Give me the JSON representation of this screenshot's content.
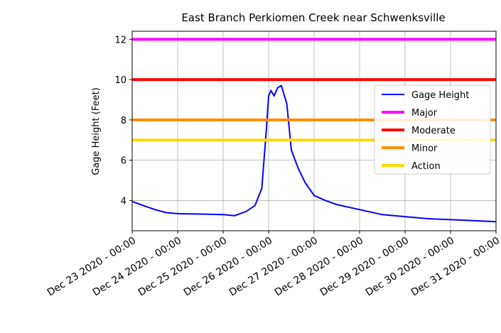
{
  "chart_data": {
    "type": "line",
    "title": "East Branch Perkiomen Creek near Schwenksville",
    "ylabel": "Gage Height (Feet)",
    "x": [
      "2020-12-23 00:00",
      "2020-12-23 06:00",
      "2020-12-23 12:00",
      "2020-12-23 18:00",
      "2020-12-24 00:00",
      "2020-12-24 12:00",
      "2020-12-25 00:00",
      "2020-12-25 06:00",
      "2020-12-25 12:00",
      "2020-12-25 16:48",
      "2020-12-25 20:24",
      "2020-12-25 22:48",
      "2020-12-26 00:00",
      "2020-12-26 01:12",
      "2020-12-26 02:53",
      "2020-12-26 04:48",
      "2020-12-26 06:43",
      "2020-12-26 09:36",
      "2020-12-26 12:00",
      "2020-12-26 15:36",
      "2020-12-26 19:12",
      "2020-12-27 00:00",
      "2020-12-27 06:00",
      "2020-12-27 12:00",
      "2020-12-28 00:00",
      "2020-12-28 12:00",
      "2020-12-29 00:00",
      "2020-12-29 12:00",
      "2020-12-30 00:00",
      "2020-12-30 12:00",
      "2020-12-31 00:00"
    ],
    "series": [
      {
        "name": "Gage Height",
        "color": "#0000ff",
        "values": [
          3.95,
          3.75,
          3.55,
          3.4,
          3.35,
          3.33,
          3.3,
          3.25,
          3.45,
          3.75,
          4.6,
          7.5,
          9.2,
          9.45,
          9.2,
          9.6,
          9.7,
          8.8,
          6.5,
          5.6,
          4.9,
          4.25,
          4.0,
          3.8,
          3.55,
          3.3,
          3.2,
          3.1,
          3.05,
          3.0,
          2.95
        ]
      },
      {
        "name": "Major",
        "color": "#ff00ff",
        "value": 12
      },
      {
        "name": "Moderate",
        "color": "#ff0000",
        "value": 10
      },
      {
        "name": "Minor",
        "color": "#ff8c00",
        "value": 8
      },
      {
        "name": "Action",
        "color": "#ffd700",
        "value": 7
      }
    ],
    "xlim": [
      "2020-12-23 00:00",
      "2020-12-31 00:00"
    ],
    "xticks": [
      {
        "value": "2020-12-23 00:00",
        "label": "Dec 23 2020 - 00:00"
      },
      {
        "value": "2020-12-24 00:00",
        "label": "Dec 24 2020 - 00:00"
      },
      {
        "value": "2020-12-25 00:00",
        "label": "Dec 25 2020 - 00:00"
      },
      {
        "value": "2020-12-26 00:00",
        "label": "Dec 26 2020 - 00:00"
      },
      {
        "value": "2020-12-27 00:00",
        "label": "Dec 27 2020 - 00:00"
      },
      {
        "value": "2020-12-28 00:00",
        "label": "Dec 28 2020 - 00:00"
      },
      {
        "value": "2020-12-29 00:00",
        "label": "Dec 29 2020 - 00:00"
      },
      {
        "value": "2020-12-30 00:00",
        "label": "Dec 30 2020 - 00:00"
      },
      {
        "value": "2020-12-31 00:00",
        "label": "Dec 31 2020 - 00:00"
      }
    ],
    "ylim": [
      2.5,
      12.4
    ],
    "yticks": [
      4,
      6,
      8,
      10,
      12
    ],
    "grid": true,
    "legend": "upper right"
  }
}
